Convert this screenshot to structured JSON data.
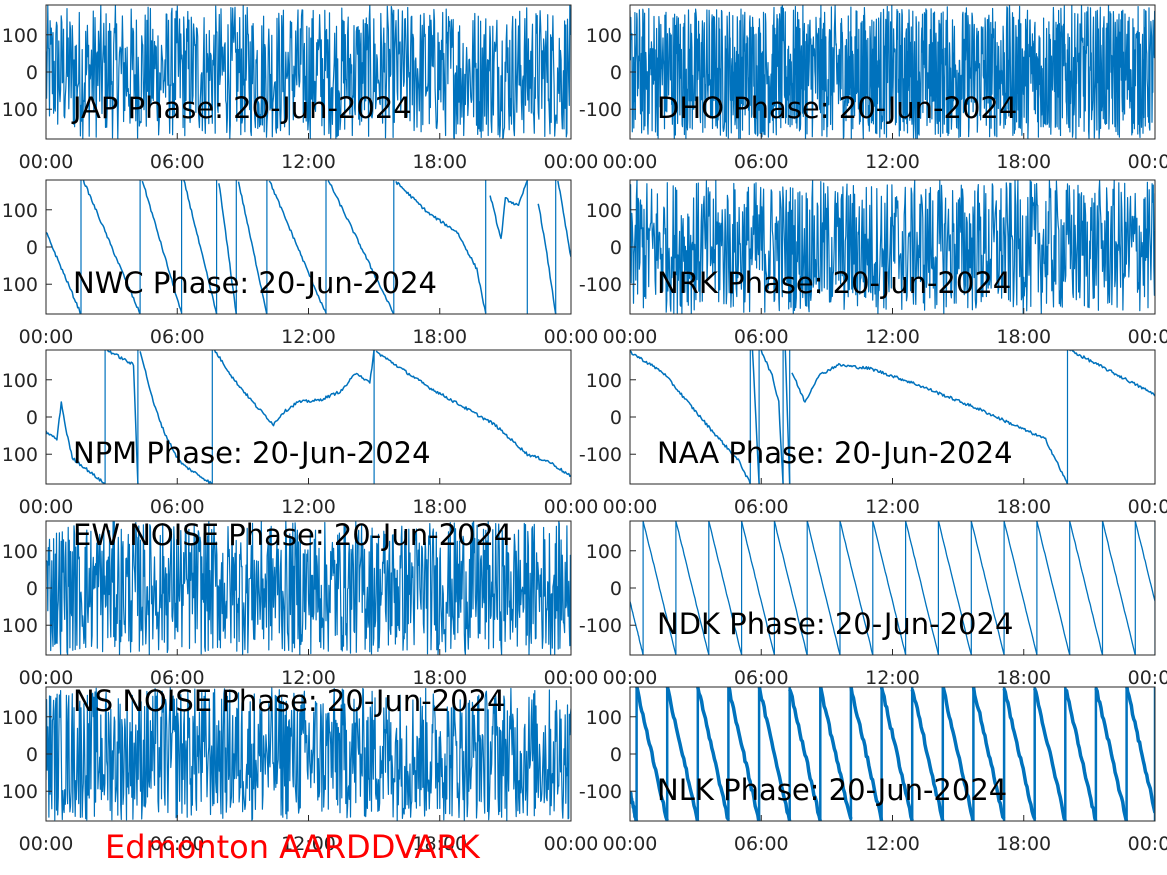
{
  "figure": {
    "station_label": "Edmonton AARDDVARK",
    "station_color": "#ff0000",
    "line_color": "#0072bd",
    "axis_color": "#262626"
  },
  "chart_data": [
    {
      "type": "line",
      "title": "JAP Phase: 20-Jun-2024",
      "behavior": "noise",
      "x_ticks": [
        "00:00",
        "06:00",
        "12:00",
        "18:00",
        "00:00"
      ],
      "y_ticks": [
        "100",
        "0",
        "100"
      ],
      "ylim": [
        -180,
        180
      ],
      "xlim_hours": [
        0,
        24
      ],
      "grid": false,
      "segments": []
    },
    {
      "type": "line",
      "title": "DHO Phase: 20-Jun-2024",
      "behavior": "noise_fast",
      "x_ticks": [
        "00:00",
        "06:00",
        "12:00",
        "18:00",
        "00:00"
      ],
      "y_ticks": [
        "100",
        "0",
        "-100"
      ],
      "ylim": [
        -180,
        180
      ],
      "xlim_hours": [
        0,
        24
      ],
      "grid": false,
      "segments": []
    },
    {
      "type": "line",
      "title": "NWC Phase: 20-Jun-2024",
      "behavior": "segments",
      "x_ticks": [
        "00:00",
        "06:00",
        "12:00",
        "18:00",
        "00:00"
      ],
      "y_ticks": [
        "100",
        "0",
        "100"
      ],
      "ylim": [
        -180,
        180
      ],
      "xlim_hours": [
        0,
        24
      ],
      "grid": false,
      "segments": [
        [
          [
            0,
            40
          ],
          [
            1.6,
            -180
          ]
        ],
        [
          [
            1.7,
            180
          ],
          [
            4.3,
            -180
          ]
        ],
        [
          [
            4.4,
            180
          ],
          [
            6.2,
            -180
          ]
        ],
        [
          [
            6.3,
            180
          ],
          [
            7.8,
            -180
          ]
        ],
        [
          [
            7.9,
            175
          ],
          [
            8.7,
            -180
          ]
        ],
        [
          [
            8.8,
            175
          ],
          [
            10.1,
            -180
          ]
        ],
        [
          [
            10.2,
            180
          ],
          [
            12.8,
            -180
          ]
        ],
        [
          [
            12.9,
            180
          ],
          [
            15.9,
            -180
          ]
        ],
        [
          [
            16.0,
            175
          ],
          [
            17.5,
            90
          ],
          [
            18.8,
            40
          ],
          [
            19.7,
            -60
          ],
          [
            20.1,
            -180
          ]
        ],
        [
          [
            20.3,
            140
          ],
          [
            20.8,
            20
          ],
          [
            21.0,
            130
          ],
          [
            21.6,
            110
          ],
          [
            22.0,
            180
          ]
        ],
        [
          [
            22.5,
            120
          ],
          [
            22.9,
            -20
          ],
          [
            23.3,
            -180
          ]
        ],
        [
          [
            23.4,
            180
          ],
          [
            24,
            -30
          ]
        ]
      ]
    },
    {
      "type": "line",
      "title": "NRK Phase: 20-Jun-2024",
      "behavior": "noise",
      "x_ticks": [
        "00:00",
        "06:00",
        "12:00",
        "18:00",
        "00:00"
      ],
      "y_ticks": [
        "100",
        "0",
        "-100"
      ],
      "ylim": [
        -180,
        180
      ],
      "xlim_hours": [
        0,
        24
      ],
      "grid": false,
      "segments": []
    },
    {
      "type": "line",
      "title": "NPM Phase: 20-Jun-2024",
      "behavior": "segments",
      "x_ticks": [
        "00:00",
        "06:00",
        "12:00",
        "18:00",
        "00:00"
      ],
      "y_ticks": [
        "100",
        "0",
        "100"
      ],
      "ylim": [
        -180,
        180
      ],
      "xlim_hours": [
        0,
        24
      ],
      "grid": false,
      "segments": [
        [
          [
            0,
            -40
          ],
          [
            0.5,
            -60
          ],
          [
            0.7,
            40
          ],
          [
            0.9,
            -30
          ],
          [
            1.2,
            -110
          ],
          [
            2.7,
            -180
          ]
        ],
        [
          [
            2.8,
            180
          ],
          [
            4.0,
            140
          ],
          [
            4.2,
            -180
          ]
        ],
        [
          [
            4.3,
            180
          ],
          [
            4.9,
            40
          ],
          [
            5.4,
            -40
          ],
          [
            6.0,
            -110
          ],
          [
            6.3,
            -130
          ],
          [
            7.6,
            -180
          ]
        ],
        [
          [
            7.7,
            180
          ],
          [
            8.6,
            100
          ],
          [
            9.6,
            30
          ],
          [
            10.4,
            -20
          ],
          [
            10.8,
            10
          ],
          [
            11.5,
            40
          ],
          [
            12.5,
            45
          ],
          [
            13.5,
            70
          ],
          [
            14.2,
            120
          ],
          [
            14.8,
            90
          ],
          [
            15.0,
            180
          ]
        ],
        [
          [
            15.1,
            175
          ],
          [
            17.5,
            80
          ],
          [
            20.5,
            -20
          ],
          [
            22.0,
            -100
          ],
          [
            23.0,
            -120
          ],
          [
            24,
            -160
          ]
        ]
      ]
    },
    {
      "type": "line",
      "title": "NAA Phase: 20-Jun-2024",
      "behavior": "segments",
      "x_ticks": [
        "00:00",
        "06:00",
        "12:00",
        "18:00",
        "00:00"
      ],
      "y_ticks": [
        "100",
        "0",
        "-100"
      ],
      "ylim": [
        -180,
        180
      ],
      "xlim_hours": [
        0,
        24
      ],
      "grid": false,
      "segments": [
        [
          [
            0,
            175
          ],
          [
            1.5,
            120
          ],
          [
            3.5,
            -20
          ],
          [
            5.0,
            -120
          ],
          [
            5.5,
            -180
          ]
        ],
        [
          [
            5.6,
            180
          ],
          [
            5.9,
            -180
          ]
        ],
        [
          [
            6.0,
            180
          ],
          [
            6.5,
            110
          ],
          [
            6.8,
            40
          ],
          [
            7.0,
            -180
          ]
        ],
        [
          [
            7.1,
            180
          ],
          [
            7.3,
            -180
          ]
        ],
        [
          [
            7.4,
            120
          ],
          [
            8.0,
            40
          ],
          [
            8.6,
            110
          ],
          [
            9.5,
            140
          ],
          [
            11.0,
            130
          ],
          [
            13.0,
            90
          ],
          [
            16.0,
            20
          ],
          [
            19.0,
            -60
          ],
          [
            20.0,
            -180
          ]
        ],
        [
          [
            20.1,
            180
          ],
          [
            24,
            60
          ]
        ]
      ]
    },
    {
      "type": "line",
      "title": "EW NOISE Phase: 20-Jun-2024",
      "behavior": "noise",
      "x_ticks": [
        "00:00",
        "06:00",
        "12:00",
        "18:00",
        "00:00"
      ],
      "y_ticks": [
        "100",
        "0",
        "100"
      ],
      "ylim": [
        -180,
        180
      ],
      "xlim_hours": [
        0,
        24
      ],
      "grid": false,
      "segments": []
    },
    {
      "type": "line",
      "title": "NDK Phase: 20-Jun-2024",
      "behavior": "sawtooth",
      "period_hours": 1.5,
      "offset_hours": 0.6,
      "x_ticks": [
        "00:00",
        "06:00",
        "12:00",
        "18:00",
        "00:00"
      ],
      "y_ticks": [
        "100",
        "0",
        "-100"
      ],
      "ylim": [
        -180,
        180
      ],
      "xlim_hours": [
        0,
        24
      ],
      "grid": false,
      "segments": []
    },
    {
      "type": "line",
      "title": "NS NOISE Phase: 20-Jun-2024",
      "behavior": "noise",
      "x_ticks": [
        "00:00",
        "06:00",
        "12:00",
        "18:00",
        "00:00"
      ],
      "y_ticks": [
        "100",
        "0",
        "100"
      ],
      "ylim": [
        -180,
        180
      ],
      "xlim_hours": [
        0,
        24
      ],
      "grid": false,
      "segments": []
    },
    {
      "type": "line",
      "title": "NLK Phase: 20-Jun-2024",
      "behavior": "sawtooth_thick",
      "period_hours": 1.4,
      "offset_hours": 0.3,
      "x_ticks": [
        "00:00",
        "06:00",
        "12:00",
        "18:00",
        "00:00"
      ],
      "y_ticks": [
        "100",
        "0",
        "-100"
      ],
      "ylim": [
        -180,
        180
      ],
      "xlim_hours": [
        0,
        24
      ],
      "grid": false,
      "segments": []
    }
  ]
}
